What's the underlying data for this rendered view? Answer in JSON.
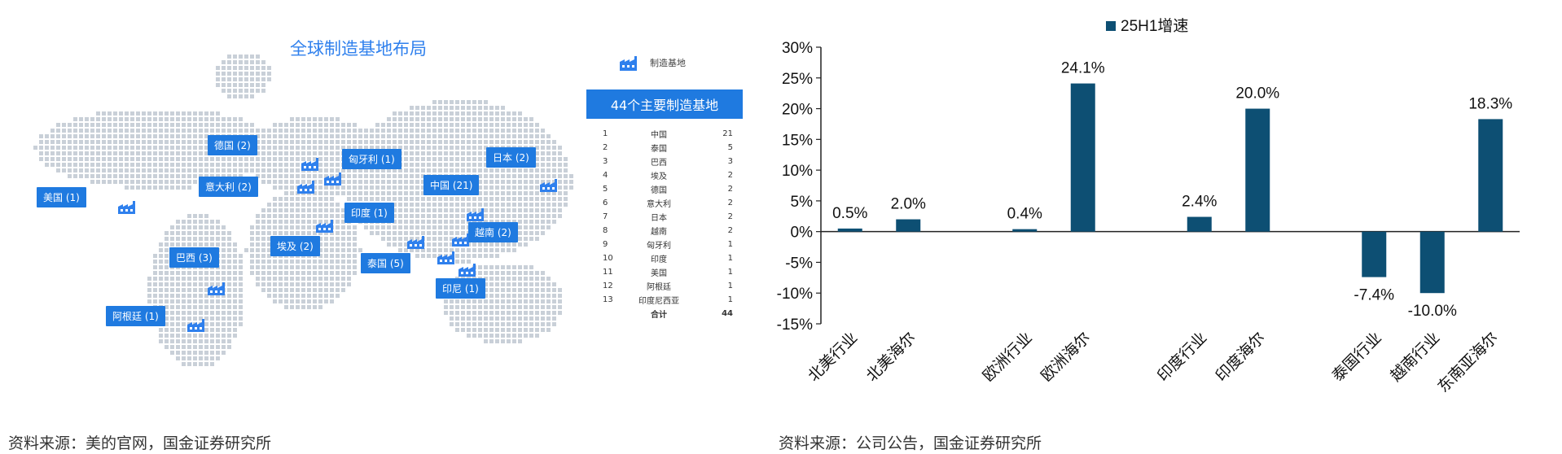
{
  "left": {
    "map_title": "全球制造基地布局",
    "legend_label": "制造基地",
    "header": "44个主要制造基地",
    "tags": [
      "德国 (2)",
      "匈牙利 (1)",
      "日本 (2)",
      "美国 (1)",
      "意大利 (2)",
      "中国 (21)",
      "印度 (1)",
      "越南 (2)",
      "埃及 (2)",
      "泰国 (5)",
      "巴西 (3)",
      "印尼 (1)",
      "阿根廷 (1)"
    ],
    "table": [
      {
        "no": "1",
        "country": "中国",
        "count": "21"
      },
      {
        "no": "2",
        "country": "泰国",
        "count": "5"
      },
      {
        "no": "3",
        "country": "巴西",
        "count": "3"
      },
      {
        "no": "4",
        "country": "埃及",
        "count": "2"
      },
      {
        "no": "5",
        "country": "德国",
        "count": "2"
      },
      {
        "no": "6",
        "country": "意大利",
        "count": "2"
      },
      {
        "no": "7",
        "country": "日本",
        "count": "2"
      },
      {
        "no": "8",
        "country": "越南",
        "count": "2"
      },
      {
        "no": "9",
        "country": "匈牙利",
        "count": "1"
      },
      {
        "no": "10",
        "country": "印度",
        "count": "1"
      },
      {
        "no": "11",
        "country": "美国",
        "count": "1"
      },
      {
        "no": "12",
        "country": "阿根廷",
        "count": "1"
      },
      {
        "no": "13",
        "country": "印度尼西亚",
        "count": "1"
      }
    ],
    "table_total": {
      "label": "合计",
      "count": "44"
    },
    "source": "资料来源：美的官网，国金证券研究所"
  },
  "right": {
    "source": "资料来源：公司公告，国金证券研究所"
  },
  "colors": {
    "bar": "#0d4f73",
    "tag_blue": "#1f7ae0",
    "title_blue": "#2f80ed",
    "map_dots": "#c9d0d8"
  },
  "chart_data": {
    "type": "bar",
    "title": "",
    "legend": [
      "25H1增速"
    ],
    "legend_position": "top",
    "categories": [
      "北美行业",
      "北美海尔",
      "",
      "欧洲行业",
      "欧洲海尔",
      "",
      "印度行业",
      "印度海尔",
      "",
      "泰国行业",
      "越南行业",
      "东南亚海尔"
    ],
    "series": [
      {
        "name": "25H1增速",
        "values": [
          0.5,
          2.0,
          null,
          0.4,
          24.1,
          null,
          2.4,
          20.0,
          null,
          -7.4,
          -10.0,
          18.3
        ]
      }
    ],
    "data_labels": [
      "0.5%",
      "2.0%",
      "",
      "0.4%",
      "24.1%",
      "",
      "2.4%",
      "20.0%",
      "",
      "-7.4%",
      "-10.0%",
      "18.3%"
    ],
    "ylim": [
      -15,
      30
    ],
    "yticks": [
      "30%",
      "25%",
      "20%",
      "15%",
      "10%",
      "5%",
      "0%",
      "-5%",
      "-10%",
      "-15%"
    ],
    "grid": false,
    "xlabel": "",
    "ylabel": ""
  }
}
